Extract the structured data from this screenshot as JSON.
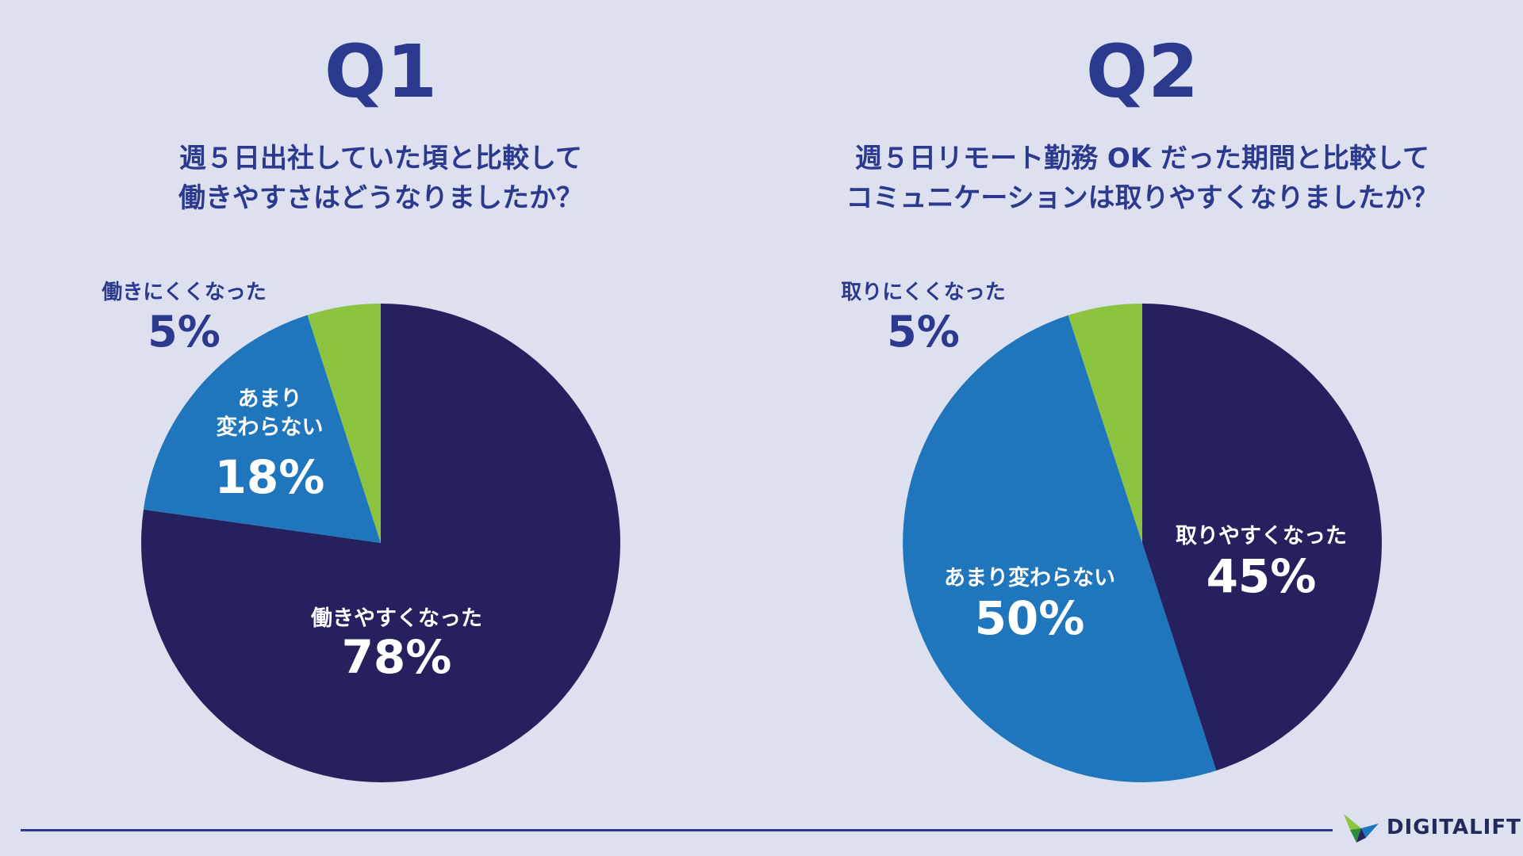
{
  "brand": {
    "name": "DIGITALIFT"
  },
  "colors": {
    "title": "#2b3a8f",
    "dark": "#25215e",
    "blue": "#1f76bd",
    "green": "#8cc440",
    "background": "#dde0ee"
  },
  "chart_data": [
    {
      "type": "pie",
      "title": "Q1",
      "subtitle": [
        "週５日出社していた頃と比較して",
        "働きやすさはどうなりましたか？"
      ],
      "slices": [
        {
          "label": "働きやすくなった",
          "value": 78,
          "value_label": "78%",
          "color": "#25215e"
        },
        {
          "label_lines": [
            "あまり",
            "変わらない"
          ],
          "value": 18,
          "value_label": "18%",
          "color": "#1f76bd"
        },
        {
          "label": "働きにくくなった",
          "value": 5,
          "value_label": "5%",
          "color": "#8cc440"
        }
      ]
    },
    {
      "type": "pie",
      "title": "Q2",
      "subtitle": [
        "週５日リモート勤務 OK だった期間と比較して",
        "コミュニケーションは取りやすくなりましたか？"
      ],
      "slices": [
        {
          "label": "取りやすくなった",
          "value": 45,
          "value_label": "45%",
          "color": "#25215e"
        },
        {
          "label": "あまり変わらない",
          "value": 50,
          "value_label": "50%",
          "color": "#1f76bd"
        },
        {
          "label": "取りにくくなった",
          "value": 5,
          "value_label": "5%",
          "color": "#8cc440"
        }
      ]
    }
  ]
}
